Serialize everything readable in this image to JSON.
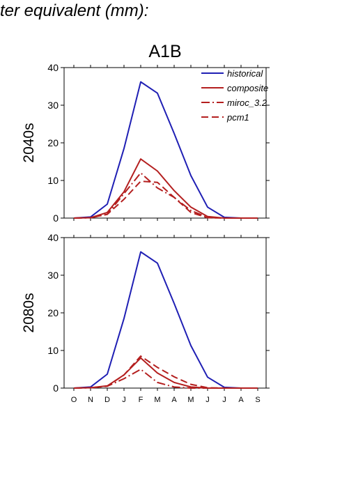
{
  "heading": "ter equivalent (mm):",
  "scenario": "A1B",
  "months": [
    "O",
    "N",
    "D",
    "J",
    "F",
    "M",
    "A",
    "M",
    "J",
    "J",
    "A",
    "S"
  ],
  "legend": [
    {
      "name": "historical",
      "color": "#1f1fb4",
      "dash": "solid"
    },
    {
      "name": "composite",
      "color": "#b41f1f",
      "dash": "solid"
    },
    {
      "name": "miroc_3.2",
      "color": "#b41f1f",
      "dash": "dashdot"
    },
    {
      "name": "pcm1",
      "color": "#b41f1f",
      "dash": "dash"
    }
  ],
  "chart_data": [
    {
      "type": "line",
      "title": "A1B",
      "ylabel": "2040s",
      "categories": [
        "O",
        "N",
        "D",
        "J",
        "F",
        "M",
        "A",
        "M",
        "J",
        "J",
        "A",
        "S"
      ],
      "ylim": [
        0,
        40
      ],
      "yticks": [
        0,
        10,
        20,
        30,
        40
      ],
      "series": [
        {
          "name": "historical",
          "values": [
            0,
            0.3,
            3.7,
            18.5,
            36.2,
            33.2,
            22.5,
            11.3,
            2.9,
            0.2,
            0,
            0
          ]
        },
        {
          "name": "composite",
          "values": [
            0,
            0.1,
            1.5,
            7.0,
            15.7,
            12.5,
            7.3,
            2.9,
            0.4,
            0,
            0,
            0
          ]
        },
        {
          "name": "miroc_3.2",
          "values": [
            0,
            0.1,
            1.0,
            6.5,
            12.0,
            8.0,
            5.5,
            2.0,
            0.2,
            0,
            0,
            0
          ]
        },
        {
          "name": "pcm1",
          "values": [
            0,
            0.1,
            1.0,
            5.0,
            9.8,
            9.5,
            5.5,
            1.5,
            0.1,
            0,
            0,
            0
          ]
        }
      ]
    },
    {
      "type": "line",
      "title": "",
      "ylabel": "2080s",
      "categories": [
        "O",
        "N",
        "D",
        "J",
        "F",
        "M",
        "A",
        "M",
        "J",
        "J",
        "A",
        "S"
      ],
      "ylim": [
        0,
        40
      ],
      "yticks": [
        0,
        10,
        20,
        30,
        40
      ],
      "series": [
        {
          "name": "historical",
          "values": [
            0,
            0.3,
            3.7,
            18.5,
            36.2,
            33.2,
            22.5,
            11.3,
            2.9,
            0.2,
            0,
            0
          ]
        },
        {
          "name": "composite",
          "values": [
            0,
            0.1,
            0.6,
            3.5,
            8.0,
            4.0,
            1.5,
            0.3,
            0,
            0,
            0,
            0
          ]
        },
        {
          "name": "miroc_3.2",
          "values": [
            0,
            0.1,
            0.5,
            2.5,
            5.0,
            1.5,
            0.3,
            0,
            0,
            0,
            0,
            0
          ]
        },
        {
          "name": "pcm1",
          "values": [
            0,
            0.1,
            0.5,
            3.5,
            8.5,
            5.5,
            3.0,
            1.0,
            0.1,
            0,
            0,
            0
          ]
        }
      ]
    }
  ]
}
